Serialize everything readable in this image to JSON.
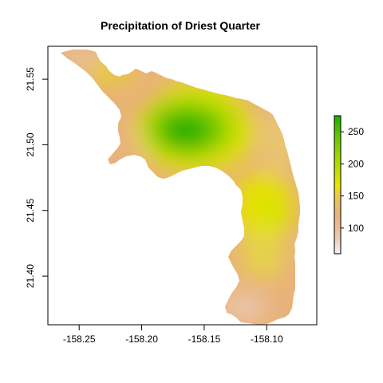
{
  "title": "Precipitation of Driest Quarter",
  "chart_data": {
    "type": "heatmap",
    "title": "Precipitation of Driest Quarter",
    "xlabel": "",
    "ylabel": "",
    "xlim": [
      -158.275,
      -158.06
    ],
    "ylim": [
      21.363,
      21.575
    ],
    "x_ticks": [
      "-158.25",
      "-158.20",
      "-158.15",
      "-158.10"
    ],
    "x_tick_values": [
      -158.25,
      -158.2,
      -158.15,
      -158.1
    ],
    "y_ticks": [
      "21.40",
      "21.45",
      "21.50",
      "21.55"
    ],
    "y_tick_values": [
      21.4,
      21.45,
      21.5,
      21.55
    ],
    "legend": {
      "placement": "right",
      "min": 60,
      "max": 275,
      "ticks": [
        "100",
        "150",
        "200",
        "250"
      ],
      "tick_values": [
        100,
        150,
        200,
        250
      ],
      "colors": [
        "#f2f2f2",
        "#eac9b2",
        "#e8b27a",
        "#e9c55a",
        "#e6e600",
        "#a8d800",
        "#63c600",
        "#1aac00"
      ]
    },
    "hotspots": [
      {
        "x": -158.162,
        "y": 21.508,
        "value": 272
      },
      {
        "x": -158.095,
        "y": 21.448,
        "value": 165
      },
      {
        "x": -158.105,
        "y": 21.41,
        "value": 115
      },
      {
        "x": -158.245,
        "y": 21.555,
        "value": 110
      },
      {
        "x": -158.11,
        "y": 21.37,
        "value": 90
      }
    ],
    "grid": false
  }
}
